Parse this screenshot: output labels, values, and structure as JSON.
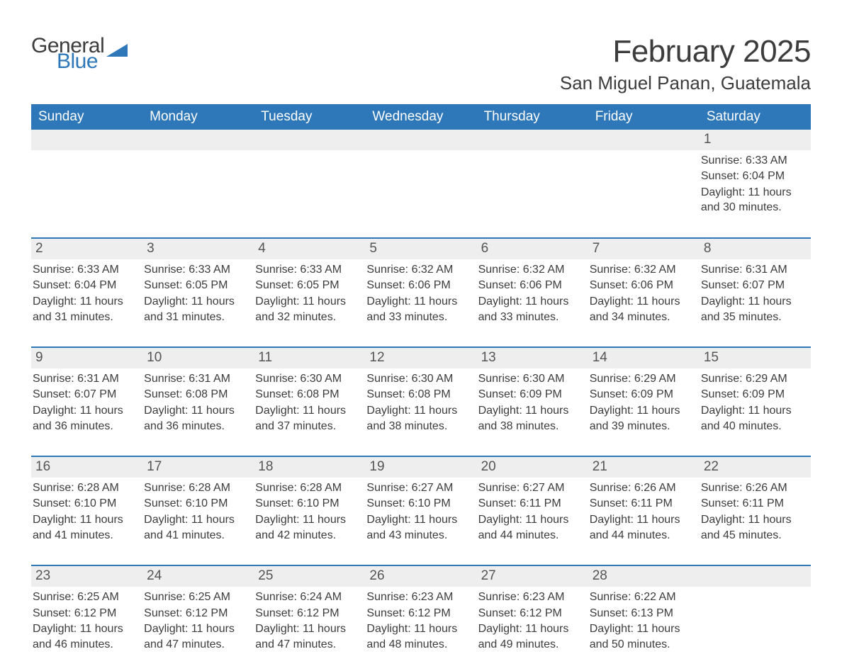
{
  "logo": {
    "text1": "General",
    "text2": "Blue",
    "color1": "#3c3c3c",
    "color2": "#2e77b8",
    "triangle_color": "#2e77b8"
  },
  "title": "February 2025",
  "location": "San Miguel Panan, Guatemala",
  "header_bg": "#2e77b8",
  "header_fg": "#ffffff",
  "daynum_bg": "#eeeeee",
  "row_separator_color": "#2e77b8",
  "body_bg": "#ffffff",
  "text_color": "#3c3c3c",
  "day_names": [
    "Sunday",
    "Monday",
    "Tuesday",
    "Wednesday",
    "Thursday",
    "Friday",
    "Saturday"
  ],
  "weeks": [
    [
      {
        "day": "",
        "sunrise": "",
        "sunset": "",
        "daylight": ""
      },
      {
        "day": "",
        "sunrise": "",
        "sunset": "",
        "daylight": ""
      },
      {
        "day": "",
        "sunrise": "",
        "sunset": "",
        "daylight": ""
      },
      {
        "day": "",
        "sunrise": "",
        "sunset": "",
        "daylight": ""
      },
      {
        "day": "",
        "sunrise": "",
        "sunset": "",
        "daylight": ""
      },
      {
        "day": "",
        "sunrise": "",
        "sunset": "",
        "daylight": ""
      },
      {
        "day": "1",
        "sunrise": "Sunrise: 6:33 AM",
        "sunset": "Sunset: 6:04 PM",
        "daylight": "Daylight: 11 hours and 30 minutes."
      }
    ],
    [
      {
        "day": "2",
        "sunrise": "Sunrise: 6:33 AM",
        "sunset": "Sunset: 6:04 PM",
        "daylight": "Daylight: 11 hours and 31 minutes."
      },
      {
        "day": "3",
        "sunrise": "Sunrise: 6:33 AM",
        "sunset": "Sunset: 6:05 PM",
        "daylight": "Daylight: 11 hours and 31 minutes."
      },
      {
        "day": "4",
        "sunrise": "Sunrise: 6:33 AM",
        "sunset": "Sunset: 6:05 PM",
        "daylight": "Daylight: 11 hours and 32 minutes."
      },
      {
        "day": "5",
        "sunrise": "Sunrise: 6:32 AM",
        "sunset": "Sunset: 6:06 PM",
        "daylight": "Daylight: 11 hours and 33 minutes."
      },
      {
        "day": "6",
        "sunrise": "Sunrise: 6:32 AM",
        "sunset": "Sunset: 6:06 PM",
        "daylight": "Daylight: 11 hours and 33 minutes."
      },
      {
        "day": "7",
        "sunrise": "Sunrise: 6:32 AM",
        "sunset": "Sunset: 6:06 PM",
        "daylight": "Daylight: 11 hours and 34 minutes."
      },
      {
        "day": "8",
        "sunrise": "Sunrise: 6:31 AM",
        "sunset": "Sunset: 6:07 PM",
        "daylight": "Daylight: 11 hours and 35 minutes."
      }
    ],
    [
      {
        "day": "9",
        "sunrise": "Sunrise: 6:31 AM",
        "sunset": "Sunset: 6:07 PM",
        "daylight": "Daylight: 11 hours and 36 minutes."
      },
      {
        "day": "10",
        "sunrise": "Sunrise: 6:31 AM",
        "sunset": "Sunset: 6:08 PM",
        "daylight": "Daylight: 11 hours and 36 minutes."
      },
      {
        "day": "11",
        "sunrise": "Sunrise: 6:30 AM",
        "sunset": "Sunset: 6:08 PM",
        "daylight": "Daylight: 11 hours and 37 minutes."
      },
      {
        "day": "12",
        "sunrise": "Sunrise: 6:30 AM",
        "sunset": "Sunset: 6:08 PM",
        "daylight": "Daylight: 11 hours and 38 minutes."
      },
      {
        "day": "13",
        "sunrise": "Sunrise: 6:30 AM",
        "sunset": "Sunset: 6:09 PM",
        "daylight": "Daylight: 11 hours and 38 minutes."
      },
      {
        "day": "14",
        "sunrise": "Sunrise: 6:29 AM",
        "sunset": "Sunset: 6:09 PM",
        "daylight": "Daylight: 11 hours and 39 minutes."
      },
      {
        "day": "15",
        "sunrise": "Sunrise: 6:29 AM",
        "sunset": "Sunset: 6:09 PM",
        "daylight": "Daylight: 11 hours and 40 minutes."
      }
    ],
    [
      {
        "day": "16",
        "sunrise": "Sunrise: 6:28 AM",
        "sunset": "Sunset: 6:10 PM",
        "daylight": "Daylight: 11 hours and 41 minutes."
      },
      {
        "day": "17",
        "sunrise": "Sunrise: 6:28 AM",
        "sunset": "Sunset: 6:10 PM",
        "daylight": "Daylight: 11 hours and 41 minutes."
      },
      {
        "day": "18",
        "sunrise": "Sunrise: 6:28 AM",
        "sunset": "Sunset: 6:10 PM",
        "daylight": "Daylight: 11 hours and 42 minutes."
      },
      {
        "day": "19",
        "sunrise": "Sunrise: 6:27 AM",
        "sunset": "Sunset: 6:10 PM",
        "daylight": "Daylight: 11 hours and 43 minutes."
      },
      {
        "day": "20",
        "sunrise": "Sunrise: 6:27 AM",
        "sunset": "Sunset: 6:11 PM",
        "daylight": "Daylight: 11 hours and 44 minutes."
      },
      {
        "day": "21",
        "sunrise": "Sunrise: 6:26 AM",
        "sunset": "Sunset: 6:11 PM",
        "daylight": "Daylight: 11 hours and 44 minutes."
      },
      {
        "day": "22",
        "sunrise": "Sunrise: 6:26 AM",
        "sunset": "Sunset: 6:11 PM",
        "daylight": "Daylight: 11 hours and 45 minutes."
      }
    ],
    [
      {
        "day": "23",
        "sunrise": "Sunrise: 6:25 AM",
        "sunset": "Sunset: 6:12 PM",
        "daylight": "Daylight: 11 hours and 46 minutes."
      },
      {
        "day": "24",
        "sunrise": "Sunrise: 6:25 AM",
        "sunset": "Sunset: 6:12 PM",
        "daylight": "Daylight: 11 hours and 47 minutes."
      },
      {
        "day": "25",
        "sunrise": "Sunrise: 6:24 AM",
        "sunset": "Sunset: 6:12 PM",
        "daylight": "Daylight: 11 hours and 47 minutes."
      },
      {
        "day": "26",
        "sunrise": "Sunrise: 6:23 AM",
        "sunset": "Sunset: 6:12 PM",
        "daylight": "Daylight: 11 hours and 48 minutes."
      },
      {
        "day": "27",
        "sunrise": "Sunrise: 6:23 AM",
        "sunset": "Sunset: 6:12 PM",
        "daylight": "Daylight: 11 hours and 49 minutes."
      },
      {
        "day": "28",
        "sunrise": "Sunrise: 6:22 AM",
        "sunset": "Sunset: 6:13 PM",
        "daylight": "Daylight: 11 hours and 50 minutes."
      },
      {
        "day": "",
        "sunrise": "",
        "sunset": "",
        "daylight": ""
      }
    ]
  ]
}
